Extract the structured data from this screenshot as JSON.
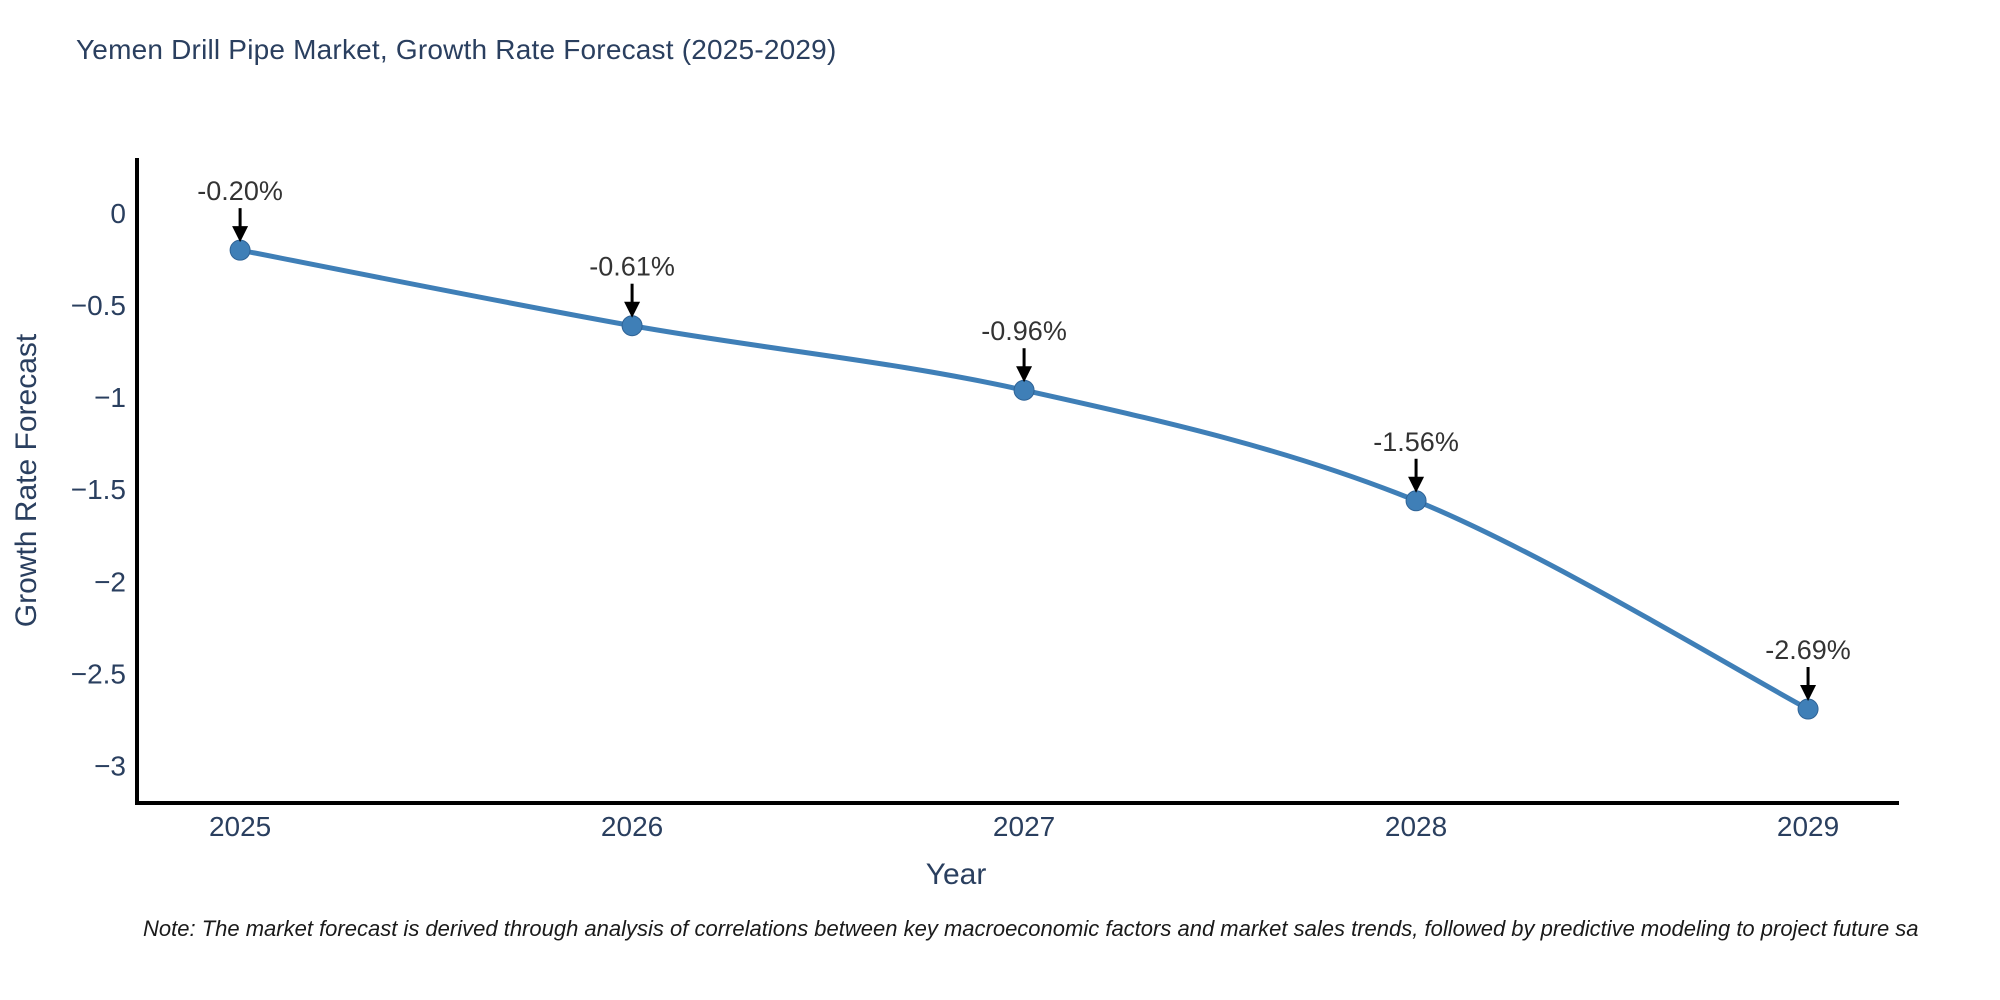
{
  "page": {
    "title": "Yemen Drill Pipe Market, Growth Rate Forecast (2025-2029)",
    "note": "Note: The market forecast is derived through analysis of correlations between key macroeconomic factors and market sales trends, followed by predictive modeling to project future sa"
  },
  "chart_data": {
    "type": "line",
    "title": "Yemen Drill Pipe Market, Growth Rate Forecast (2025-2029)",
    "x": [
      2025,
      2026,
      2027,
      2028,
      2029
    ],
    "series": [
      {
        "name": "Growth Rate Forecast",
        "values": [
          -0.2,
          -0.61,
          -0.96,
          -1.56,
          -2.69
        ]
      }
    ],
    "point_labels": [
      "-0.20%",
      "-0.61%",
      "-0.96%",
      "-1.56%",
      "-2.69%"
    ],
    "xlabel": "Year",
    "ylabel": "Growth Rate Forecast",
    "xlim": [
      2024.737,
      2029.232
    ],
    "ylim": [
      -3.2,
      0.3
    ],
    "xticks": {
      "values": [
        2025,
        2026,
        2027,
        2028,
        2029
      ],
      "labels": [
        "2025",
        "2026",
        "2027",
        "2028",
        "2029"
      ]
    },
    "yticks": {
      "values": [
        0,
        -0.5,
        -1,
        -1.5,
        -2,
        -2.5,
        -3
      ],
      "labels": [
        "0",
        "−0.5",
        "−1",
        "−1.5",
        "−2",
        "−2.5",
        "−3"
      ]
    },
    "grid": false,
    "legend": "none",
    "line_shape": "spline",
    "colors": {
      "line": "#3f7fb7",
      "marker": "#3f7fb7",
      "marker_edge": "#2f6396",
      "axis": "#000000",
      "title_text": "#2a3f5f",
      "axis_text": "#2a3f5f",
      "annotation_text": "#333333",
      "arrow": "#000000",
      "background": "#ffffff"
    }
  }
}
